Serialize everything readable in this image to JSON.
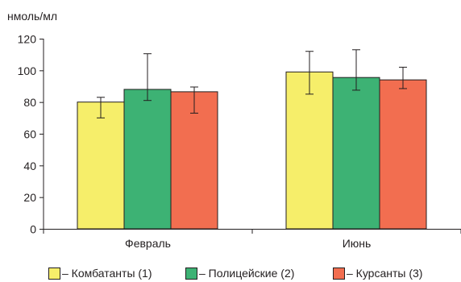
{
  "chart_data": {
    "type": "bar",
    "ylabel": "нмоль/мл",
    "ylim": [
      0,
      120
    ],
    "yticks": [
      0,
      20,
      40,
      60,
      80,
      100,
      120
    ],
    "categories": [
      "Февраль",
      "Июнь"
    ],
    "series": [
      {
        "name": "– Комбатанты (1)",
        "color": "#f6ee6a",
        "values": [
          80,
          99
        ],
        "err_low": [
          70,
          85
        ],
        "err_high": [
          83,
          112
        ]
      },
      {
        "name": "– Полицейские (2)",
        "color": "#3db274",
        "values": [
          88,
          95.5
        ],
        "err_low": [
          81,
          87.5
        ],
        "err_high": [
          110.5,
          113
        ]
      },
      {
        "name": "– Курсанты (3)",
        "color": "#f26e50",
        "values": [
          86.5,
          94
        ],
        "err_low": [
          73,
          88.5
        ],
        "err_high": [
          89.5,
          102
        ]
      }
    ],
    "grid": false,
    "legend_position": "bottom"
  }
}
